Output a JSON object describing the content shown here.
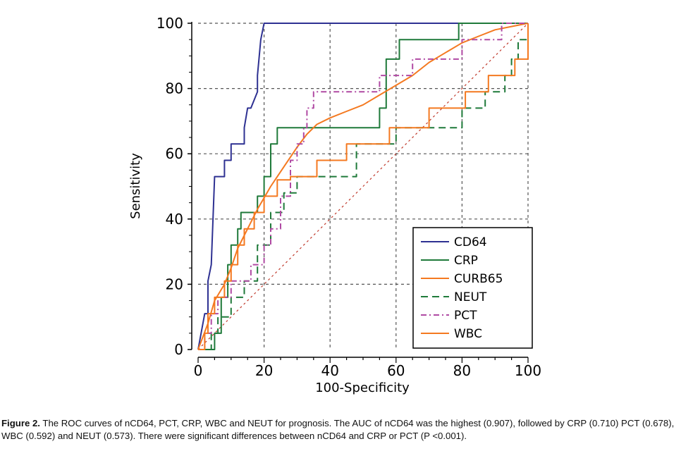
{
  "chart_data": {
    "type": "line",
    "xlabel": "100-Specificity",
    "ylabel": "Sensitivity",
    "xlim": [
      0,
      100
    ],
    "ylim": [
      0,
      100
    ],
    "xticks": [
      "0",
      "20",
      "40",
      "60",
      "80",
      "100"
    ],
    "yticks": [
      "0",
      "20",
      "40",
      "60",
      "80",
      "100"
    ],
    "grid": true,
    "legend_position": "bottom-right",
    "series": [
      {
        "name": "CD64",
        "color": "#2e3192",
        "dash": "solid",
        "x": [
          0,
          2,
          3,
          3,
          4,
          5,
          8,
          8,
          10,
          10,
          12,
          14,
          14,
          15,
          16,
          18,
          18,
          19,
          20,
          78,
          100
        ],
        "y": [
          0,
          11,
          11,
          21,
          26,
          53,
          53,
          58,
          58,
          63,
          63,
          63,
          68,
          74,
          74,
          79,
          84,
          95,
          100,
          100,
          100
        ]
      },
      {
        "name": "CRP",
        "color": "#1f7a3a",
        "dash": "solid",
        "x": [
          0,
          3,
          5,
          7,
          9,
          10,
          12,
          13,
          16,
          18,
          20,
          22,
          24,
          25,
          30,
          40,
          55,
          57,
          61,
          70,
          79,
          100
        ],
        "y": [
          0,
          0,
          5,
          16,
          26,
          32,
          37,
          42,
          42,
          47,
          53,
          63,
          68,
          68,
          68,
          68,
          74,
          89,
          95,
          95,
          100,
          100
        ],
        "step": true
      },
      {
        "name": "CURB65",
        "color": "#f47920",
        "dash": "solid",
        "x": [
          0,
          3,
          5,
          8,
          10,
          12,
          15,
          18,
          22,
          26,
          30,
          33,
          36,
          40,
          45,
          50,
          55,
          60,
          65,
          70,
          75,
          80,
          85,
          90,
          95,
          100
        ],
        "y": [
          0,
          8,
          15,
          20,
          25,
          31,
          37,
          43,
          50,
          56,
          62,
          66,
          69,
          71,
          73,
          75,
          78,
          81,
          84,
          88,
          91,
          94,
          96,
          98,
          99,
          100
        ]
      },
      {
        "name": "NEUT",
        "color": "#1f7a3a",
        "dash": "long-dash",
        "x": [
          0,
          4,
          6,
          10,
          14,
          18,
          22,
          26,
          30,
          33,
          35,
          38,
          40,
          42,
          45,
          48,
          52,
          55,
          60,
          64,
          70,
          75,
          80,
          84,
          87,
          90,
          93,
          95,
          97,
          100
        ],
        "y": [
          0,
          5,
          10,
          16,
          21,
          32,
          42,
          48,
          53,
          53,
          53,
          53,
          53,
          53,
          53,
          63,
          63,
          63,
          68,
          68,
          68,
          68,
          74,
          74,
          79,
          79,
          84,
          89,
          95,
          100
        ],
        "step": true
      },
      {
        "name": "PCT",
        "color": "#b04aa3",
        "dash": "dash-dot",
        "x": [
          0,
          2,
          4,
          6,
          8,
          10,
          14,
          16,
          18,
          20,
          22,
          25,
          28,
          30,
          32,
          33,
          35,
          37,
          40,
          45,
          50,
          55,
          60,
          62,
          65,
          70,
          75,
          80,
          85,
          88,
          90,
          92,
          95,
          100
        ],
        "y": [
          0,
          5,
          11,
          16,
          16,
          21,
          21,
          26,
          26,
          32,
          37,
          47,
          58,
          63,
          68,
          74,
          79,
          79,
          79,
          79,
          79,
          84,
          84,
          84,
          89,
          89,
          89,
          95,
          95,
          95,
          95,
          100,
          100,
          100
        ],
        "step": true
      },
      {
        "name": "WBC",
        "color": "#f47920",
        "dash": "solid",
        "x": [
          0,
          2,
          3,
          5,
          8,
          10,
          12,
          14,
          17,
          20,
          24,
          28,
          32,
          36,
          40,
          45,
          50,
          55,
          58,
          62,
          65,
          70,
          75,
          79,
          81,
          85,
          88,
          90,
          93,
          96,
          100
        ],
        "y": [
          0,
          5,
          11,
          16,
          21,
          26,
          32,
          37,
          42,
          47,
          52,
          53,
          53,
          58,
          58,
          63,
          63,
          63,
          68,
          68,
          68,
          74,
          74,
          74,
          79,
          79,
          84,
          84,
          84,
          89,
          100
        ],
        "step": true
      }
    ],
    "reference_line": {
      "x": [
        0,
        100
      ],
      "y": [
        0,
        100
      ],
      "color": "#c0392b",
      "dash": "dotted"
    }
  },
  "caption": {
    "label": "Figure 2.",
    "text": " The ROC curves of nCD64, PCT, CRP, WBC and NEUT for prognosis. The AUC of nCD64 was the highest (0.907), followed by CRP (0.710) PCT (0.678), WBC (0.592) and NEUT (0.573). There were significant differences between nCD64 and CRP or PCT (P <0.001)."
  }
}
